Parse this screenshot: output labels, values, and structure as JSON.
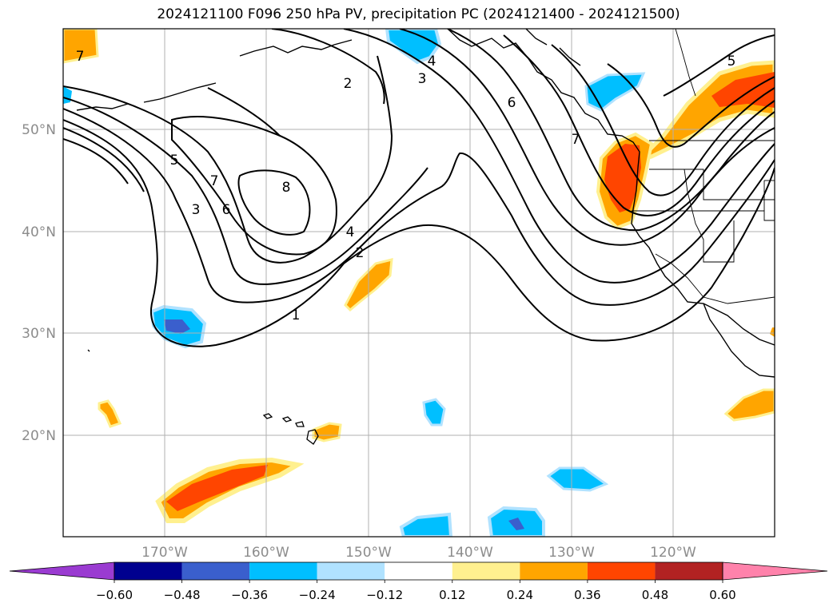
{
  "title": "2024121100 F096 250 hPa PV, precipitation PC (2024121400 - 2024121500)",
  "map": {
    "lat_labels": [
      "50°N",
      "40°N",
      "30°N",
      "20°N"
    ],
    "lon_labels": [
      "170°W",
      "160°W",
      "150°W",
      "140°W",
      "130°W",
      "120°W"
    ]
  },
  "contour_labels": [
    "1",
    "2",
    "2",
    "3",
    "3",
    "4",
    "4",
    "5",
    "5",
    "6",
    "6",
    "7",
    "7",
    "7",
    "8"
  ],
  "colorbar": {
    "ticks": [
      "−0.60",
      "−0.48",
      "−0.36",
      "−0.24",
      "−0.12",
      "0.12",
      "0.24",
      "0.36",
      "0.48",
      "0.60"
    ],
    "colors": [
      "#9a3bd1",
      "#00008f",
      "#3a5fcd",
      "#00bfff",
      "#b0e2ff",
      "#ffffff",
      "#fff08f",
      "#ffa500",
      "#ff4500",
      "#b22222",
      "#ff82ab"
    ]
  },
  "colors": {
    "neg_light": "#b0e2ff",
    "neg_mid": "#00bfff",
    "neg_strong": "#3a5fcd",
    "pos_light": "#fff08f",
    "pos_mid": "#ffa500",
    "pos_strong": "#ff4500",
    "grid": "#b0b0b0"
  }
}
